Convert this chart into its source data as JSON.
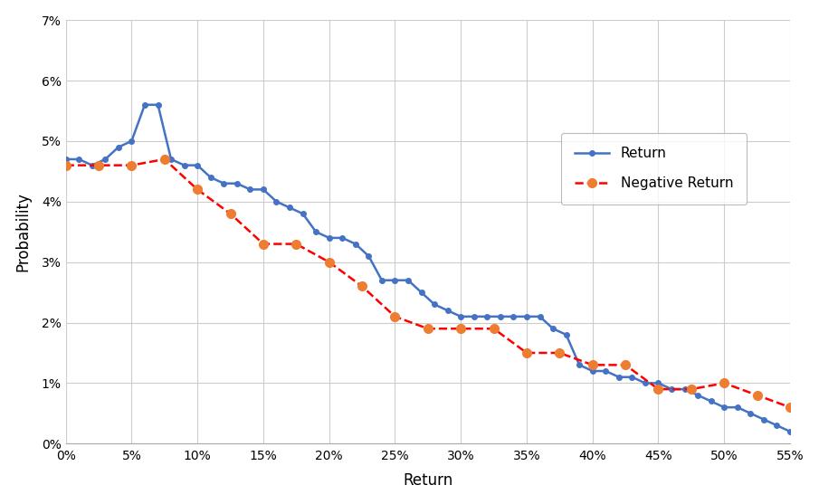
{
  "xlabel": "Return",
  "ylabel": "Probability",
  "return_x": [
    0,
    1,
    2,
    3,
    4,
    5,
    6,
    7,
    8,
    9,
    10,
    11,
    12,
    13,
    14,
    15,
    16,
    17,
    18,
    19,
    20,
    21,
    22,
    23,
    24,
    25,
    26,
    27,
    28,
    29,
    30,
    31,
    32,
    33,
    34,
    35,
    36,
    37,
    38,
    39,
    40,
    41,
    42,
    43,
    44,
    45,
    46,
    47,
    48,
    49,
    50,
    51,
    52,
    53,
    54,
    55
  ],
  "return_y": [
    0.047,
    0.047,
    0.046,
    0.047,
    0.049,
    0.05,
    0.056,
    0.056,
    0.047,
    0.046,
    0.046,
    0.044,
    0.043,
    0.043,
    0.042,
    0.042,
    0.04,
    0.039,
    0.038,
    0.035,
    0.034,
    0.034,
    0.033,
    0.031,
    0.027,
    0.027,
    0.027,
    0.025,
    0.023,
    0.022,
    0.021,
    0.021,
    0.021,
    0.021,
    0.021,
    0.021,
    0.021,
    0.019,
    0.018,
    0.013,
    0.012,
    0.012,
    0.011,
    0.011,
    0.01,
    0.01,
    0.009,
    0.009,
    0.008,
    0.007,
    0.006,
    0.006,
    0.005,
    0.004,
    0.003,
    0.002
  ],
  "neg_x": [
    0,
    2.5,
    5,
    7.5,
    10,
    12.5,
    15,
    17.5,
    20,
    22.5,
    25,
    27.5,
    30,
    32.5,
    35,
    37.5,
    40,
    42.5,
    45,
    47.5,
    50,
    52.5,
    55
  ],
  "neg_y": [
    0.046,
    0.046,
    0.046,
    0.047,
    0.042,
    0.038,
    0.033,
    0.033,
    0.03,
    0.026,
    0.021,
    0.019,
    0.019,
    0.019,
    0.015,
    0.015,
    0.013,
    0.013,
    0.009,
    0.009,
    0.01,
    0.008,
    0.006
  ],
  "return_color": "#4472C4",
  "neg_color": "#ED7D31",
  "neg_line_color": "#FF0000",
  "xlim": [
    0,
    0.55
  ],
  "ylim": [
    0,
    0.07
  ],
  "bg_color": "#FFFFFF",
  "grid_color": "#CCCCCC"
}
